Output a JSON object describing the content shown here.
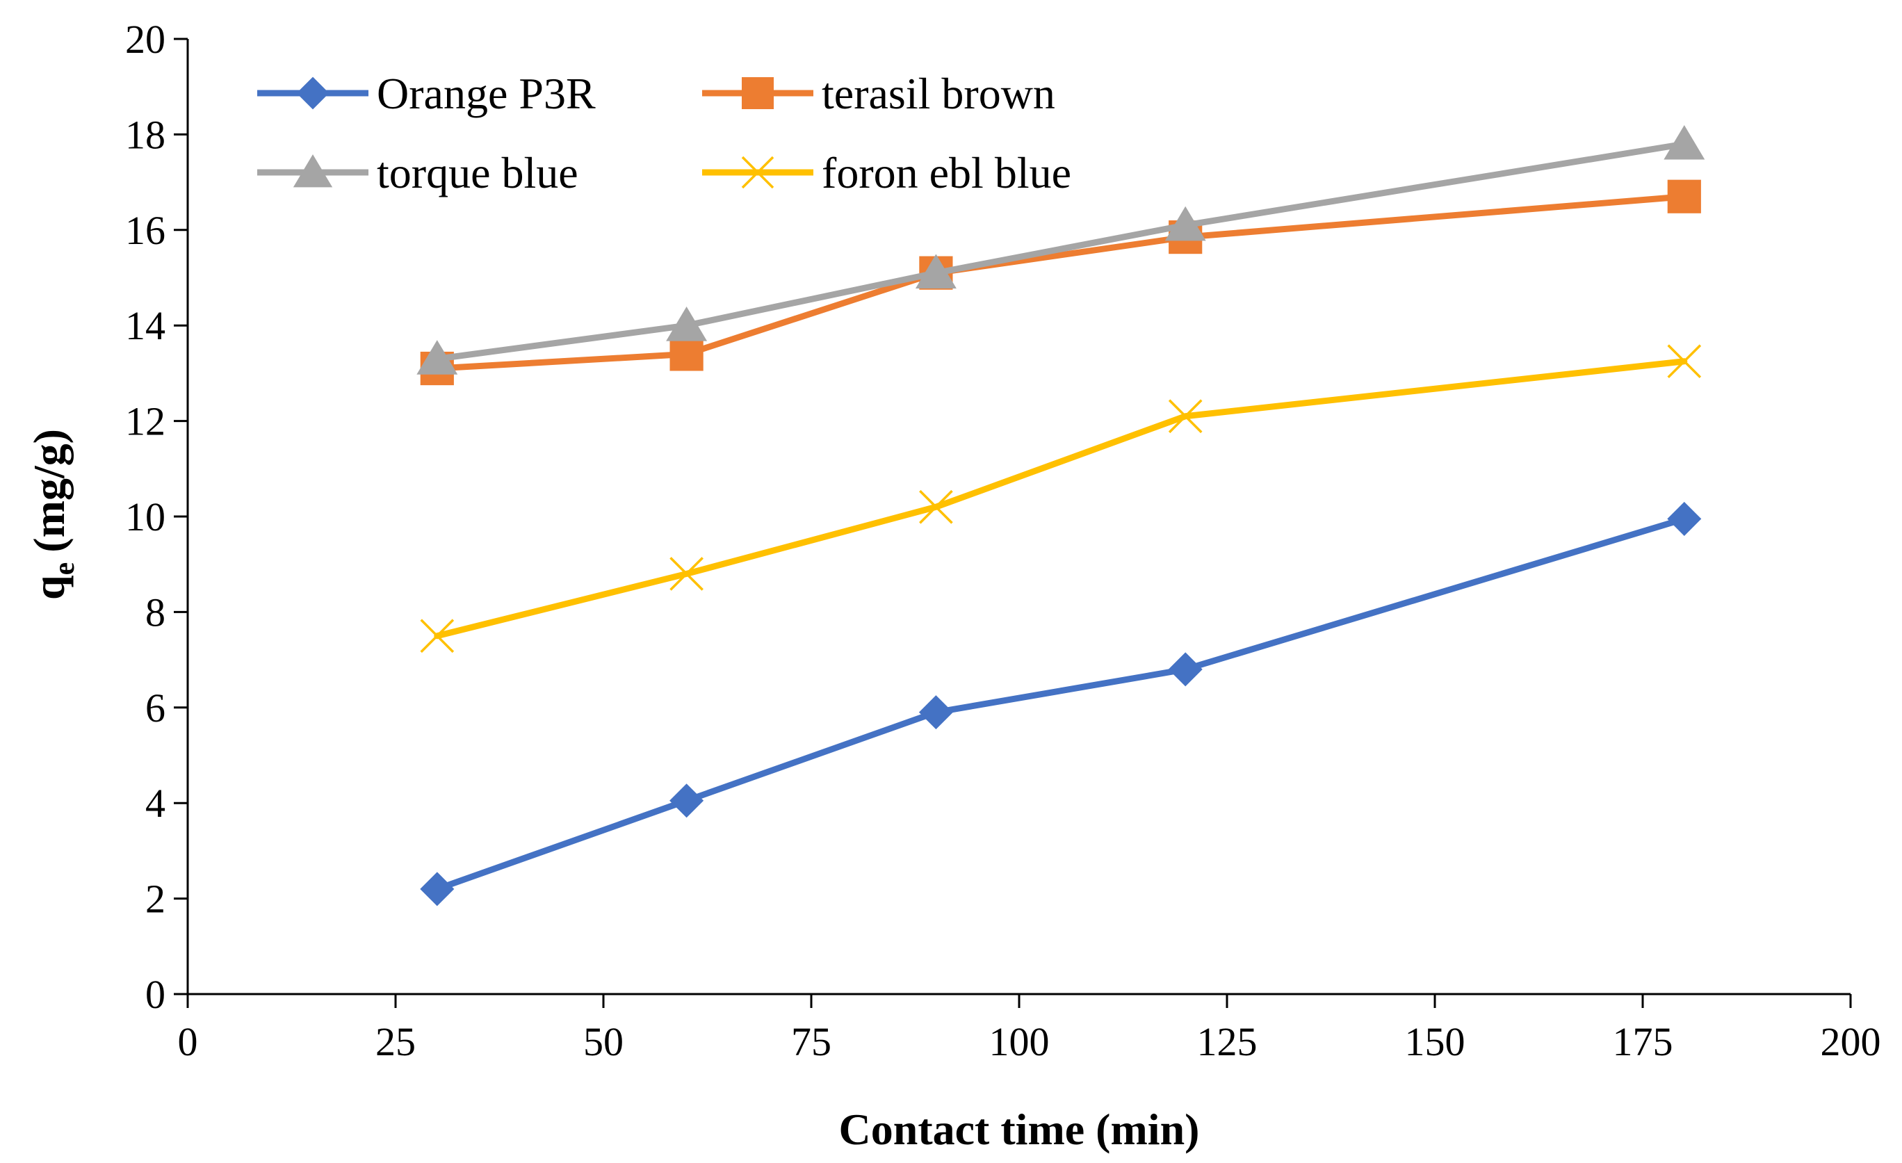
{
  "chart_data": {
    "type": "line",
    "title": "",
    "xlabel": "Contact time (min)",
    "ylabel_main": "q",
    "ylabel_sub": "e",
    "ylabel_unit": "(mg/g)",
    "xlim": [
      0,
      200
    ],
    "ylim": [
      0,
      20
    ],
    "x_ticks": [
      0,
      25,
      50,
      75,
      100,
      125,
      150,
      175,
      200
    ],
    "y_ticks": [
      0,
      2,
      4,
      6,
      8,
      10,
      12,
      14,
      16,
      18,
      20
    ],
    "grid": false,
    "legend_position": "top-left",
    "x": [
      30,
      60,
      90,
      120,
      180
    ],
    "series": [
      {
        "name": "Orange P3R",
        "marker": "diamond",
        "color": "#4472C4",
        "values": [
          2.2,
          4.05,
          5.9,
          6.8,
          9.95
        ]
      },
      {
        "name": "terasil brown",
        "marker": "square",
        "color": "#ED7D31",
        "values": [
          13.1,
          13.4,
          15.1,
          15.85,
          16.7
        ]
      },
      {
        "name": "torque blue",
        "marker": "triangle",
        "color": "#A5A5A5",
        "values": [
          13.3,
          14.0,
          15.1,
          16.1,
          17.8
        ]
      },
      {
        "name": "foron ebl blue",
        "marker": "x",
        "color": "#FFC000",
        "values": [
          7.5,
          8.8,
          10.2,
          12.1,
          13.25
        ]
      }
    ]
  }
}
